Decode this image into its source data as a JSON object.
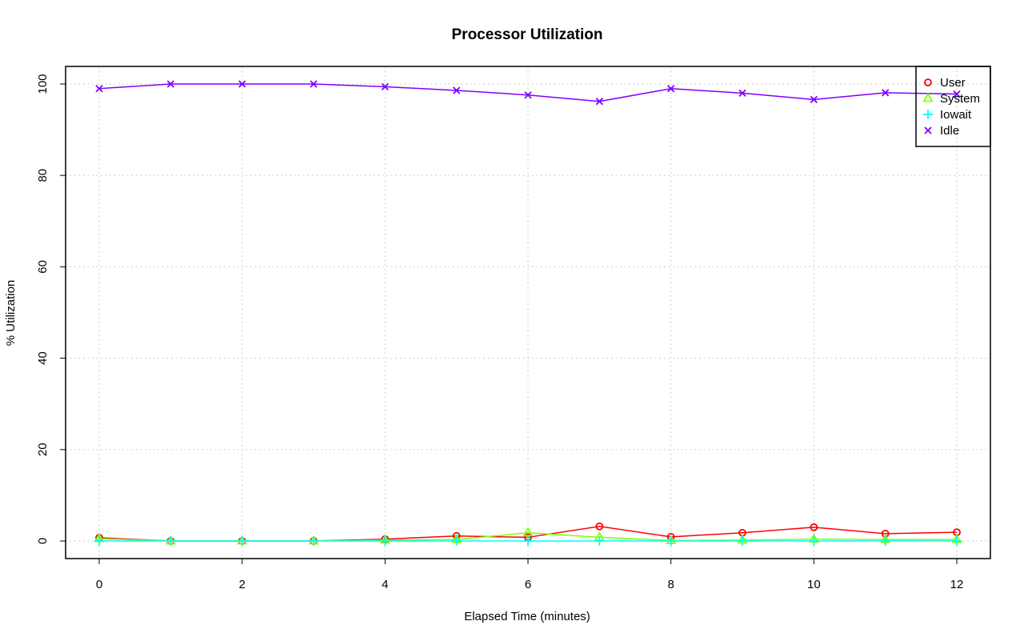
{
  "chart_data": {
    "type": "line",
    "title": "Processor Utilization",
    "xlabel": "Elapsed Time (minutes)",
    "ylabel": "% Utilization",
    "xlim": [
      0,
      12
    ],
    "ylim": [
      0,
      100
    ],
    "x_ticks": [
      0,
      2,
      4,
      6,
      8,
      10,
      12
    ],
    "y_ticks": [
      0,
      20,
      40,
      60,
      80,
      100
    ],
    "grid": true,
    "legend_position": "top-right",
    "x": [
      0,
      1,
      2,
      3,
      4,
      5,
      6,
      7,
      8,
      9,
      10,
      11,
      12
    ],
    "series": [
      {
        "name": "User",
        "color": "#FF0000",
        "marker": "circle",
        "values": [
          0.7,
          0.0,
          0.0,
          0.0,
          0.4,
          1.1,
          0.8,
          3.2,
          0.9,
          1.8,
          3.0,
          1.6,
          1.9
        ]
      },
      {
        "name": "System",
        "color": "#80FF00",
        "marker": "triangle",
        "values": [
          0.5,
          0.0,
          0.0,
          0.0,
          0.2,
          0.3,
          1.8,
          0.8,
          0.1,
          0.2,
          0.4,
          0.3,
          0.3
        ]
      },
      {
        "name": "Iowait",
        "color": "#00FFFF",
        "marker": "plus",
        "values": [
          0.0,
          0.0,
          0.0,
          0.0,
          0.0,
          0.0,
          0.0,
          0.0,
          0.0,
          0.0,
          0.0,
          0.0,
          0.0
        ]
      },
      {
        "name": "Idle",
        "color": "#8000FF",
        "marker": "cross",
        "values": [
          99.0,
          100.0,
          100.0,
          100.0,
          99.4,
          98.6,
          97.6,
          96.2,
          99.0,
          98.0,
          96.6,
          98.1,
          97.8
        ]
      }
    ]
  }
}
